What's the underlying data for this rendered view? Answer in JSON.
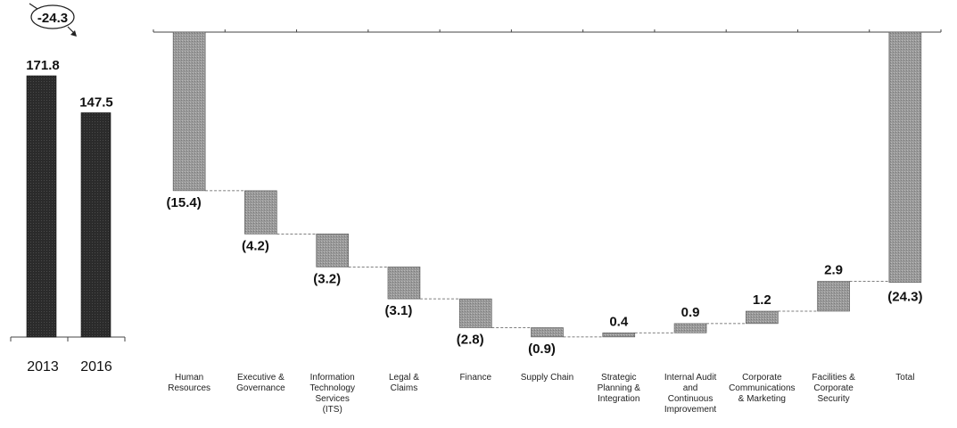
{
  "colors": {
    "dark_bar": "#2b2b2b",
    "gray_bar": "#9a9a9a",
    "axis": "#444444"
  },
  "chart_data": [
    {
      "type": "bar",
      "categories": [
        "2013",
        "2016"
      ],
      "values": [
        171.8,
        147.5
      ],
      "value_labels": [
        "171.8",
        "147.5"
      ],
      "change_label": "-24.3",
      "ylim": [
        0,
        180
      ],
      "grid": false
    },
    {
      "type": "bar",
      "subtype": "waterfall",
      "categories": [
        "Human Resources",
        "Executive & Governance",
        "Information Technology Services (ITS)",
        "Legal & Claims",
        "Finance",
        "Supply Chain",
        "Strategic Planning & Integration",
        "Internal Audit and Continuous Improvement",
        "Corporate Communications & Marketing",
        "Facilities & Corporate Security",
        "Total"
      ],
      "category_lines": [
        [
          "Human",
          "Resources"
        ],
        [
          "Executive &",
          "Governance"
        ],
        [
          "Information",
          "Technology",
          "Services",
          "(ITS)"
        ],
        [
          "Legal &",
          "Claims"
        ],
        [
          "Finance"
        ],
        [
          "Supply Chain"
        ],
        [
          "Strategic",
          "Planning &",
          "Integration"
        ],
        [
          "Internal Audit",
          "and",
          "Continuous",
          "Improvement"
        ],
        [
          "Corporate",
          "Communications",
          "& Marketing"
        ],
        [
          "Facilities &",
          "Corporate",
          "Security"
        ],
        [
          "Total"
        ]
      ],
      "values": [
        -15.4,
        -4.2,
        -3.2,
        -3.1,
        -2.8,
        -0.9,
        0.4,
        0.9,
        1.2,
        2.9,
        -24.3
      ],
      "value_labels": [
        "(15.4)",
        "(4.2)",
        "(3.2)",
        "(3.1)",
        "(2.8)",
        "(0.9)",
        "0.4",
        "0.9",
        "1.2",
        "2.9",
        "(24.3)"
      ],
      "total_index": 10,
      "grid": false
    }
  ]
}
